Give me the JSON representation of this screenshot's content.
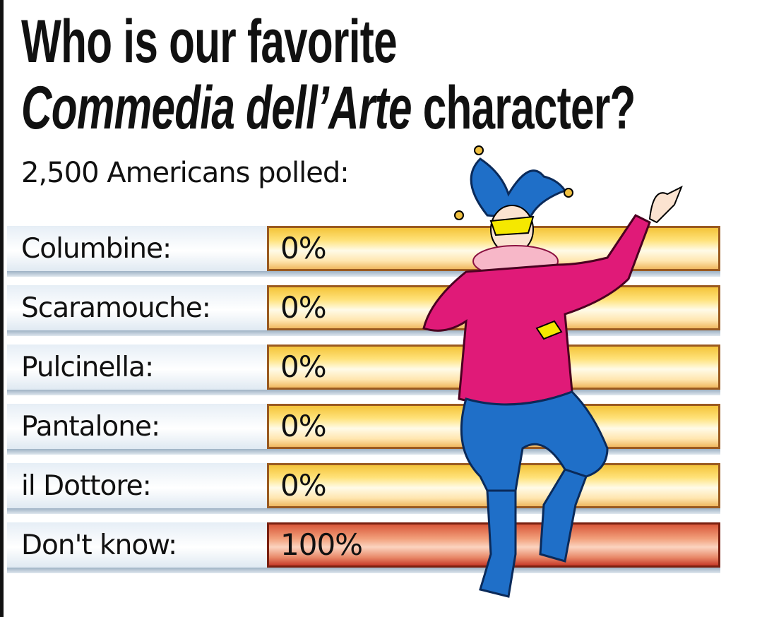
{
  "title_line1": "Who is our favorite",
  "title_line2_italic": "Commedia dell’Arte",
  "title_line2_rest": " character?",
  "subtitle": "2,500 Americans polled:",
  "chart_data": {
    "type": "bar",
    "title": "Who is our favorite Commedia dell’Arte character?",
    "subtitle": "2,500 Americans polled:",
    "categories": [
      "Columbine:",
      "Scaramouche:",
      "Pulcinella:",
      "Pantalone:",
      "il Dottore:",
      "Don't know:"
    ],
    "values": [
      0,
      0,
      0,
      0,
      0,
      100
    ],
    "value_labels": [
      "0%",
      "0%",
      "0%",
      "0%",
      "0%",
      "100%"
    ],
    "bar_colors": [
      "#ffe27a",
      "#ffe27a",
      "#ffe27a",
      "#ffe27a",
      "#ffe27a",
      "#e98a6a"
    ],
    "grid": false
  },
  "illustration": "jester-icon"
}
